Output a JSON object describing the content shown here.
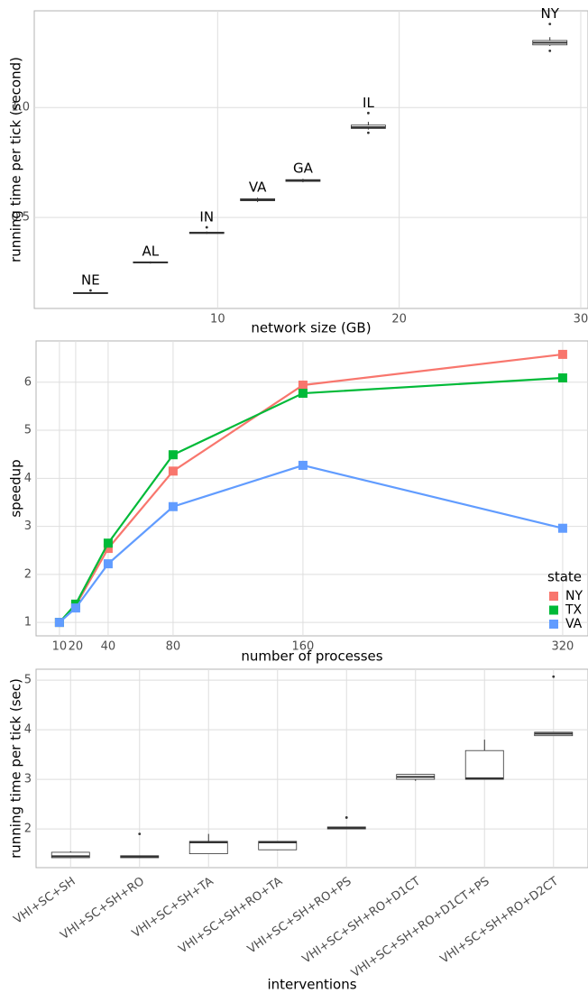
{
  "chart_data": [
    {
      "type": "box",
      "xlabel": "network size (GB)",
      "ylabel": "running time per tick (second)",
      "x": [
        3.0,
        6.3,
        9.4,
        12.2,
        14.7,
        18.3,
        28.3
      ],
      "labels": [
        "NE",
        "AL",
        "IN",
        "VA",
        "GA",
        "IL",
        "NY"
      ],
      "min": [
        0.152,
        0.29,
        0.425,
        0.57,
        0.66,
        0.9,
        1.28
      ],
      "q1": [
        0.154,
        0.293,
        0.427,
        0.576,
        0.664,
        0.905,
        1.285
      ],
      "median": [
        0.156,
        0.295,
        0.43,
        0.58,
        0.668,
        0.91,
        1.295
      ],
      "q3": [
        0.158,
        0.298,
        0.433,
        0.585,
        0.672,
        0.92,
        1.305
      ],
      "max": [
        0.16,
        0.3,
        0.436,
        0.59,
        0.676,
        0.935,
        1.32
      ],
      "outliers": [
        [
          0.168
        ],
        [],
        [
          0.455
        ],
        [],
        [],
        [
          0.975,
          0.885
        ],
        [
          1.38,
          1.258
        ]
      ],
      "color": "#333333",
      "xlim": [
        -0.1,
        30.4
      ],
      "xticks": [
        10,
        20,
        30
      ],
      "ylim": [
        0.086,
        1.44
      ],
      "yticks": [
        0.5,
        {
          "value": 1,
          "label": "1.0"
        }
      ],
      "grid": true
    },
    {
      "type": "line",
      "xlabel": "number of processes",
      "ylabel": "speedup",
      "x": [
        10,
        20,
        40,
        80,
        160,
        320
      ],
      "series": [
        {
          "name": "NY",
          "color": "#f8766d",
          "values": [
            1,
            1.35,
            2.54,
            4.15,
            5.94,
            6.58
          ]
        },
        {
          "name": "TX",
          "color": "#00ba38",
          "values": [
            1,
            1.38,
            2.65,
            4.49,
            5.77,
            6.09
          ]
        },
        {
          "name": "VA",
          "color": "#619cff",
          "values": [
            1,
            1.3,
            2.22,
            3.41,
            4.27,
            2.96
          ]
        }
      ],
      "legend_title": "state",
      "legend": "right",
      "xlim": [
        -4.4,
        335.6
      ],
      "xticks": [
        10,
        20,
        40,
        80,
        160,
        320
      ],
      "ylim": [
        0.72,
        6.86
      ],
      "yticks": [
        1,
        2,
        3,
        4,
        5,
        6
      ],
      "grid": true
    },
    {
      "type": "box",
      "xlabel": "interventions",
      "ylabel": "running time per tick (sec)",
      "categories": [
        "VHI+SC+SH",
        "VHI+SC+SH+RO",
        "VHI+SC+SH+TA",
        "VHI+SC+SH+RO+TA",
        "VHI+SC+SH+RO+PS",
        "VHI+SC+SH+RO+D1CT",
        "VHI+SC+SH+RO+D1CT+PS",
        "VHI+SC+SH+RO+D2CT"
      ],
      "min": [
        1.42,
        1.42,
        1.5,
        1.58,
        2.0,
        2.97,
        3.0,
        3.88
      ],
      "q1": [
        1.42,
        1.42,
        1.5,
        1.58,
        2.0,
        3.0,
        3.0,
        3.88
      ],
      "median": [
        1.45,
        1.44,
        1.73,
        1.73,
        2.02,
        3.05,
        3.02,
        3.92
      ],
      "q3": [
        1.53,
        1.46,
        1.75,
        1.75,
        2.04,
        3.1,
        3.58,
        3.95
      ],
      "max": [
        1.55,
        1.46,
        1.9,
        1.75,
        2.04,
        3.1,
        3.8,
        3.95
      ],
      "outliers": [
        [],
        [
          1.9
        ],
        [],
        [],
        [
          2.23
        ],
        [],
        [],
        [
          5.07
        ]
      ],
      "color": "#333333",
      "ylim": [
        1.22,
        5.22
      ],
      "yticks": [
        2,
        3,
        4,
        5
      ],
      "grid": true
    }
  ]
}
